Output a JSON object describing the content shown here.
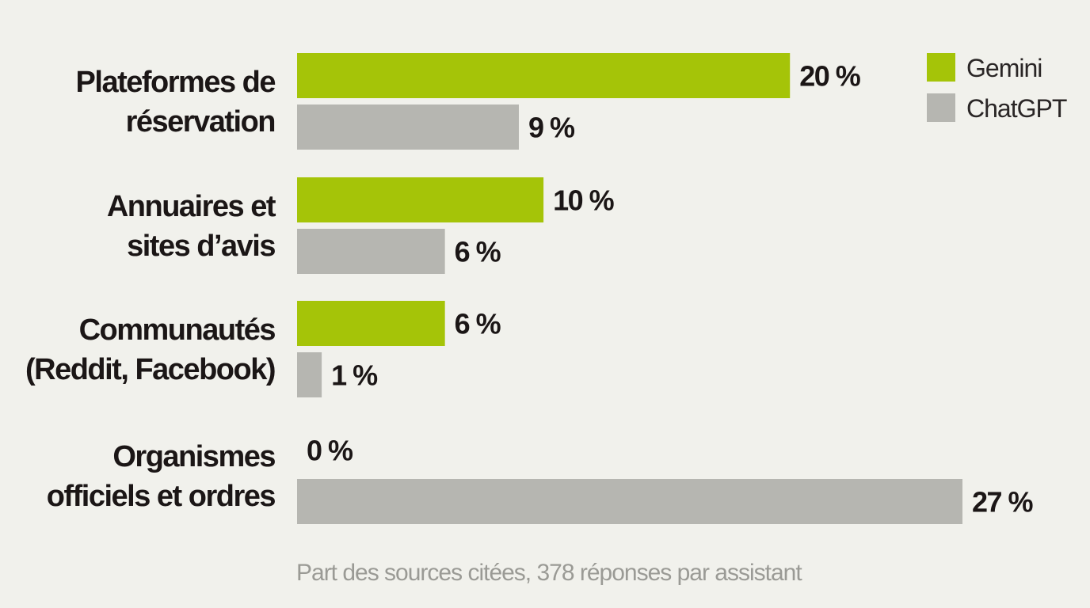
{
  "colors": {
    "background": "#f1f1ec",
    "gemini": "#a5c408",
    "chatgpt": "#b6b6b1",
    "text": "#1b1616",
    "caption": "#9a9a95"
  },
  "caption": "Part des sources citées, 378 réponses par assistant",
  "legend_position": "top-right",
  "chart_data": {
    "type": "bar",
    "orientation": "horizontal",
    "categories": [
      [
        "Plateformes de",
        "réservation"
      ],
      [
        "Annuaires et",
        "sites d’avis"
      ],
      [
        "Communautés",
        "(Reddit, Facebook)"
      ],
      [
        "Organismes",
        "officiels et ordres"
      ]
    ],
    "series": [
      {
        "name": "Gemini",
        "color": "#a5c408",
        "values": [
          20,
          10,
          6,
          0
        ],
        "labels": [
          "20 %",
          "10 %",
          "6 %",
          "0 %"
        ]
      },
      {
        "name": "ChatGPT",
        "color": "#b6b6b1",
        "values": [
          9,
          6,
          1,
          27
        ],
        "labels": [
          "9 %",
          "6 %",
          "1 %",
          "27 %"
        ]
      }
    ],
    "unit": "%",
    "xlim": [
      0,
      27
    ],
    "grid": false,
    "legend": "top-right"
  }
}
